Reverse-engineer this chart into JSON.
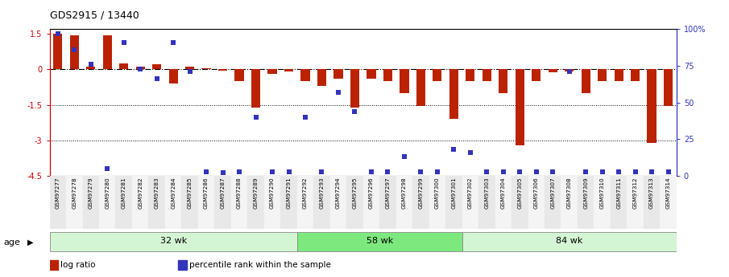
{
  "title": "GDS2915 / 13440",
  "samples": [
    "GSM97277",
    "GSM97278",
    "GSM97279",
    "GSM97280",
    "GSM97281",
    "GSM97282",
    "GSM97283",
    "GSM97284",
    "GSM97285",
    "GSM97286",
    "GSM97287",
    "GSM97288",
    "GSM97289",
    "GSM97290",
    "GSM97291",
    "GSM97292",
    "GSM97293",
    "GSM97294",
    "GSM97295",
    "GSM97296",
    "GSM97297",
    "GSM97298",
    "GSM97299",
    "GSM97300",
    "GSM97301",
    "GSM97302",
    "GSM97303",
    "GSM97304",
    "GSM97305",
    "GSM97306",
    "GSM97307",
    "GSM97308",
    "GSM97309",
    "GSM97310",
    "GSM97311",
    "GSM97312",
    "GSM97313",
    "GSM97314"
  ],
  "log_ratio": [
    1.5,
    1.42,
    0.1,
    1.42,
    0.25,
    0.1,
    0.22,
    -0.6,
    0.12,
    0.06,
    -0.04,
    -0.5,
    -1.6,
    -0.2,
    -0.1,
    -0.5,
    -0.7,
    -0.4,
    -1.6,
    -0.4,
    -0.5,
    -1.0,
    -1.55,
    -0.5,
    -2.1,
    -0.5,
    -0.5,
    -1.0,
    -3.2,
    -0.5,
    -0.12,
    -0.1,
    -1.0,
    -0.5,
    -0.5,
    -0.5,
    -3.1,
    -1.55
  ],
  "percentile": [
    97,
    86,
    76,
    5,
    91,
    73,
    66,
    91,
    71,
    3,
    2,
    3,
    40,
    3,
    3,
    40,
    3,
    57,
    44,
    3,
    3,
    13,
    3,
    3,
    18,
    16,
    3,
    3,
    3,
    3,
    3,
    71,
    3,
    3,
    3,
    3,
    3,
    3
  ],
  "groups": [
    {
      "label": "32 wk",
      "start": 0,
      "end": 15
    },
    {
      "label": "58 wk",
      "start": 15,
      "end": 25
    },
    {
      "label": "84 wk",
      "start": 25,
      "end": 38
    }
  ],
  "group_colors": [
    "#d4f5d4",
    "#7de87d",
    "#d4f5d4"
  ],
  "ylim": [
    -4.5,
    1.7
  ],
  "yticks_left": [
    1.5,
    0,
    -1.5,
    -3,
    -4.5
  ],
  "ytick_labels_left": [
    "1.5",
    "0",
    "-1.5",
    "-3",
    "-4.5"
  ],
  "y_right_ticks_pct": [
    100,
    75,
    50,
    25,
    0
  ],
  "y_right_labels": [
    "100%",
    "75",
    "50",
    "25",
    "0"
  ],
  "hlines": [
    0.0,
    -1.5,
    -3.0
  ],
  "hline_styles": [
    "dashdot",
    "dotted",
    "dotted"
  ],
  "bar_color": "#bb2200",
  "dot_color": "#3333bb",
  "dot_size": 18,
  "bar_width": 0.55,
  "legend_items": [
    {
      "color": "#bb2200",
      "label": "log ratio"
    },
    {
      "color": "#3333bb",
      "label": "percentile rank within the sample"
    }
  ],
  "age_label": "age"
}
